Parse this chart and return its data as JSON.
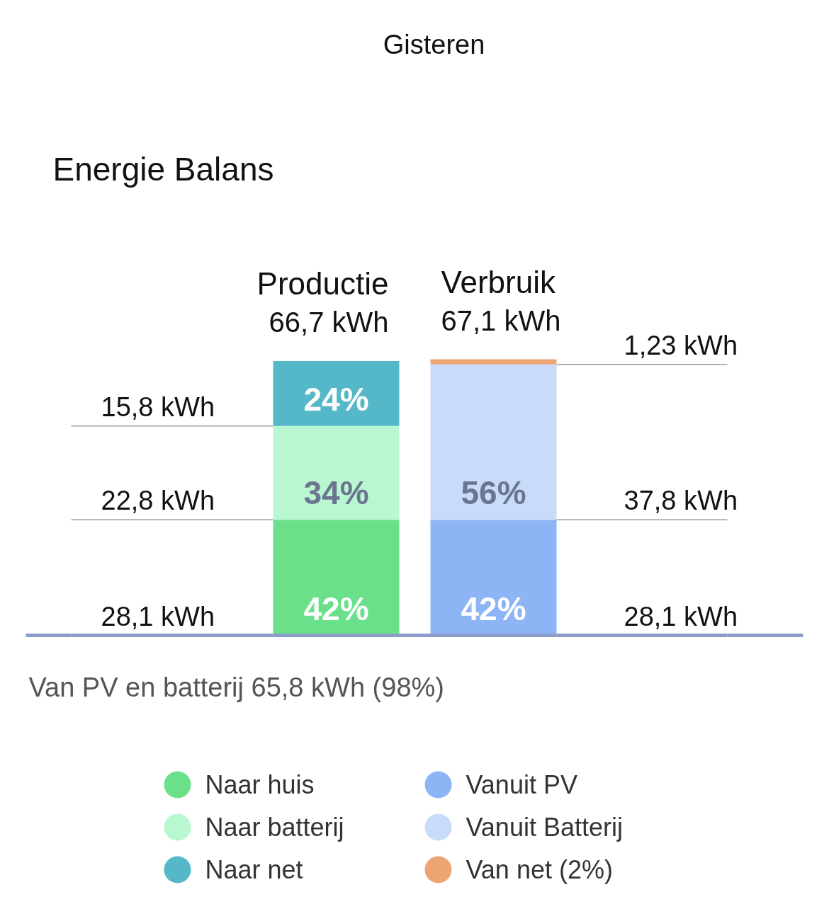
{
  "chart_data": {
    "type": "bar",
    "stacked": true,
    "title": "Energie Balans",
    "subtitle": "Gisteren",
    "tick_labels": "x",
    "legend": "bottom",
    "categories": [
      "Productie",
      "Verbruik"
    ],
    "totals": [
      "66,7 kWh",
      "67,1 kWh"
    ],
    "series": [
      {
        "name": "Naar huis",
        "color": "#6be08a",
        "values": [
          28.1,
          null
        ],
        "value_labels": [
          "28,1 kWh",
          null
        ]
      },
      {
        "name": "Naar batterij",
        "color": "#b8f7d0",
        "values": [
          22.8,
          null
        ],
        "value_labels": [
          "22,8 kWh",
          null
        ]
      },
      {
        "name": "Naar net",
        "color": "#55b8c8",
        "values": [
          15.8,
          null
        ],
        "value_labels": [
          "15,8 kWh",
          null
        ]
      },
      {
        "name": "Vanuit PV",
        "color": "#8db4f5",
        "values": [
          null,
          28.1
        ],
        "value_labels": [
          null,
          "28,1 kWh"
        ]
      },
      {
        "name": "Vanuit Batterij",
        "color": "#c8dcfa",
        "values": [
          null,
          37.8
        ],
        "value_labels": [
          null,
          "37,8 kWh"
        ]
      },
      {
        "name": "Van net (2%)",
        "color": "#eda473",
        "values": [
          null,
          1.23
        ],
        "value_labels": [
          null,
          "1,23 kWh"
        ]
      }
    ],
    "annotations": [
      "Van PV en batterij 65,8 kWh (98%)",
      {
        "text": "42%",
        "x": "Productie",
        "y": 0
      },
      {
        "text": "34%",
        "x": "Productie",
        "y": 28.1
      },
      {
        "text": "24%",
        "x": "Productie",
        "y": 50.9
      },
      {
        "text": "42%",
        "x": "Verbruik",
        "y": 0
      },
      {
        "text": "56%",
        "x": "Verbruik",
        "y": 28.1
      }
    ]
  }
}
